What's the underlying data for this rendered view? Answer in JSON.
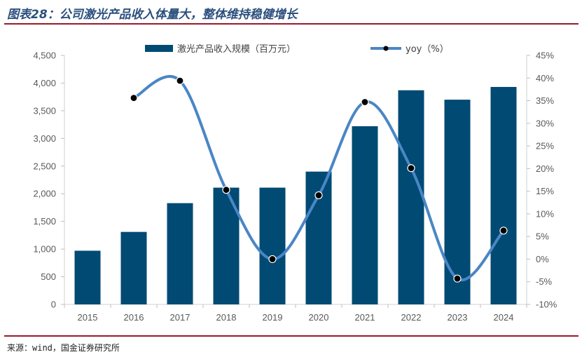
{
  "title": "图表28：公司激光产品收入体量大，整体维持稳健增长",
  "source": "来源：wind，国金证券研究所",
  "colors": {
    "bar": "#004a73",
    "line": "#4a86c5",
    "marker": "#000000",
    "accent": "#9a1b2a"
  },
  "chart_data": {
    "type": "bar",
    "categories": [
      "2015",
      "2016",
      "2017",
      "2018",
      "2019",
      "2020",
      "2021",
      "2022",
      "2023",
      "2024"
    ],
    "series": [
      {
        "name": "激光产品收入规模（百万元）",
        "type": "bar",
        "axis": "left",
        "values": [
          970,
          1310,
          1830,
          2110,
          2110,
          2400,
          3220,
          3870,
          3700,
          3930
        ]
      },
      {
        "name": "yoy（%）",
        "type": "line",
        "axis": "right",
        "values": [
          null,
          35.6,
          39.4,
          15.3,
          0,
          14.1,
          34.7,
          20.1,
          -4.3,
          6.3
        ]
      }
    ],
    "ylim": [
      0,
      4500
    ],
    "y_ticks": [
      "0",
      "500",
      "1,000",
      "1,500",
      "2,000",
      "2,500",
      "3,000",
      "3,500",
      "4,000",
      "4,500"
    ],
    "y2lim": [
      -10,
      45
    ],
    "y2_ticks": [
      "-10%",
      "-5%",
      "0%",
      "5%",
      "10%",
      "15%",
      "20%",
      "25%",
      "30%",
      "35%",
      "40%",
      "45%"
    ],
    "legend_position": "top",
    "grid": false
  }
}
